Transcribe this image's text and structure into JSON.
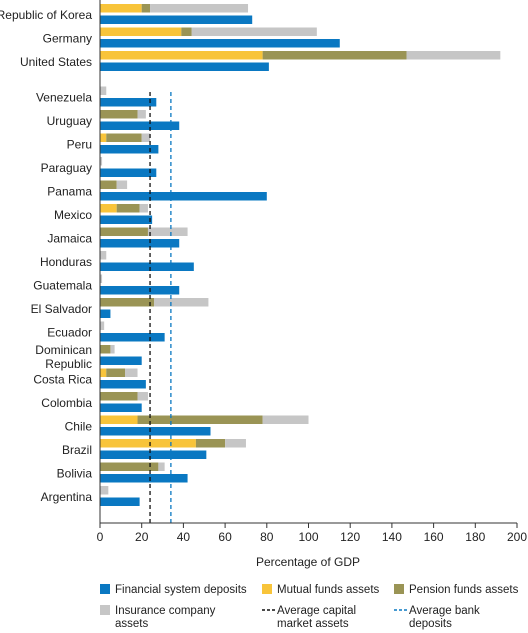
{
  "chart_data": {
    "type": "bar",
    "orientation": "horizontal",
    "stacking": "capital-market stacked; deposits separate bar",
    "xlabel": "Percentage of GDP",
    "xlim": [
      0,
      200
    ],
    "xticks": [
      "0",
      "20",
      "40",
      "60",
      "80",
      "100",
      "120",
      "140",
      "160",
      "180",
      "200"
    ],
    "grid": false,
    "legend_position": "bottom",
    "colors": {
      "deposits": "#0a78c2",
      "mutual": "#f8c43a",
      "pension": "#9a9455",
      "insurance": "#c6c6c6",
      "avg_capital_line": "#111111",
      "avg_bank_line": "#0a78c2"
    },
    "legend": {
      "deposits": "Financial system deposits",
      "mutual": "Mutual funds assets",
      "pension": "Pension funds assets",
      "insurance": "Insurance company assets",
      "avg_capital": "Average capital market assets",
      "avg_bank": "Average bank deposits"
    },
    "reference_lines": {
      "avg_capital": 24,
      "avg_bank": 34
    },
    "groups": [
      {
        "label": "Republic of Korea",
        "mutual": 20,
        "pension": 4,
        "insurance": 47,
        "deposits": 73
      },
      {
        "label": "Germany",
        "mutual": 39,
        "pension": 5,
        "insurance": 60,
        "deposits": 115
      },
      {
        "label": "United States",
        "mutual": 78,
        "pension": 69,
        "insurance": 45,
        "deposits": 81
      },
      {
        "label": "Venezuela",
        "mutual": 0,
        "pension": 0,
        "insurance": 3,
        "deposits": 27
      },
      {
        "label": "Uruguay",
        "mutual": 0,
        "pension": 18,
        "insurance": 4,
        "deposits": 38
      },
      {
        "label": "Peru",
        "mutual": 3,
        "pension": 17,
        "insurance": 4,
        "deposits": 28
      },
      {
        "label": "Paraguay",
        "mutual": 0,
        "pension": 0,
        "insurance": 1,
        "deposits": 27
      },
      {
        "label": "Panama",
        "mutual": 0,
        "pension": 8,
        "insurance": 5,
        "deposits": 80
      },
      {
        "label": "Mexico",
        "mutual": 8,
        "pension": 11,
        "insurance": 4,
        "deposits": 25
      },
      {
        "label": "Jamaica",
        "mutual": 0,
        "pension": 23,
        "insurance": 19,
        "deposits": 38
      },
      {
        "label": "Honduras",
        "mutual": 0,
        "pension": 0,
        "insurance": 3,
        "deposits": 45
      },
      {
        "label": "Guatemala",
        "mutual": 0,
        "pension": 0,
        "insurance": 1,
        "deposits": 38
      },
      {
        "label": "El Salvador",
        "mutual": 0,
        "pension": 26,
        "insurance": 26,
        "deposits": 5
      },
      {
        "label": "Ecuador",
        "mutual": 0,
        "pension": 0,
        "insurance": 2,
        "deposits": 31
      },
      {
        "label": "Dominican Republic",
        "mutual": 0,
        "pension": 5,
        "insurance": 2,
        "deposits": 20
      },
      {
        "label": "Costa Rica",
        "mutual": 3,
        "pension": 9,
        "insurance": 6,
        "deposits": 22
      },
      {
        "label": "Colombia",
        "mutual": 0,
        "pension": 18,
        "insurance": 5,
        "deposits": 20
      },
      {
        "label": "Chile",
        "mutual": 18,
        "pension": 60,
        "insurance": 22,
        "deposits": 53
      },
      {
        "label": "Brazil",
        "mutual": 46,
        "pension": 14,
        "insurance": 10,
        "deposits": 51
      },
      {
        "label": "Bolivia",
        "mutual": 0,
        "pension": 28,
        "insurance": 3,
        "deposits": 42
      },
      {
        "label": "Argentina",
        "mutual": 0,
        "pension": 0,
        "insurance": 4,
        "deposits": 19
      }
    ]
  }
}
